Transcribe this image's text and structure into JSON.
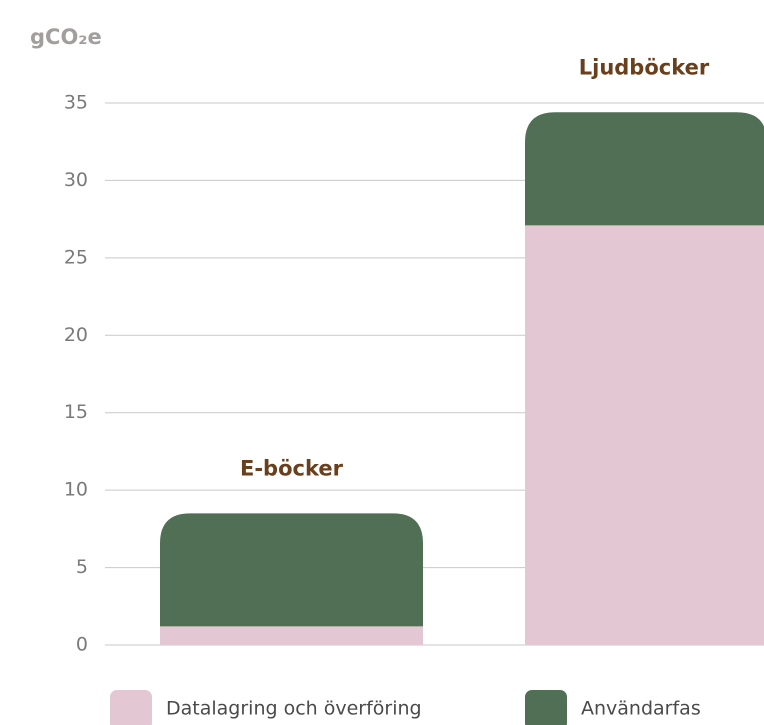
{
  "chart_data": {
    "type": "stacked_bar",
    "y_label": "gCO₂e",
    "categories": [
      "E-böcker",
      "Ljudböcker"
    ],
    "series": [
      {
        "name": "Datalagring och överföring",
        "color": "#e3c8d4",
        "values": [
          1.2,
          27.1
        ]
      },
      {
        "name": "Användarfas",
        "color": "#506f55",
        "values": [
          7.3,
          7.3
        ]
      }
    ],
    "ylim": [
      0,
      35
    ],
    "yticks": [
      0,
      5,
      10,
      15,
      20,
      25,
      30,
      35
    ],
    "grid": true,
    "legend": "bottom"
  }
}
